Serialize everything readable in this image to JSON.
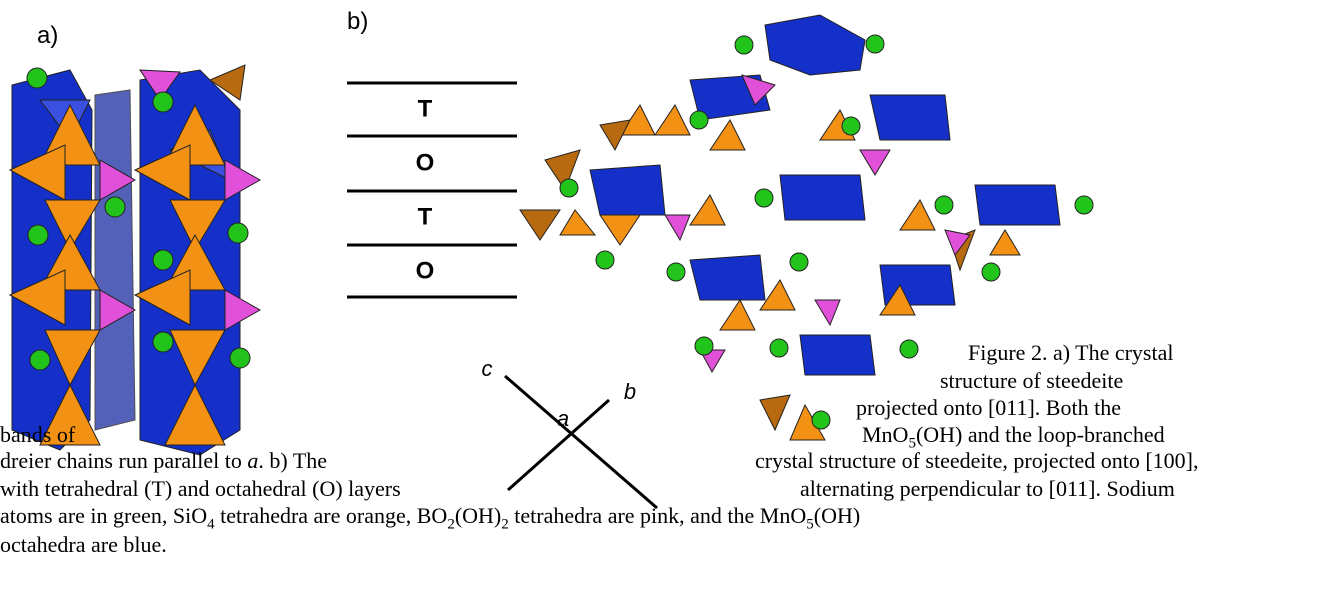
{
  "panel_a": {
    "label": "a)"
  },
  "panel_b": {
    "label": "b)",
    "layers": [
      "T",
      "O",
      "T",
      "O"
    ],
    "axes": {
      "c": "c",
      "b": "b",
      "a": "a"
    }
  },
  "caption": {
    "lines": [
      [
        "Figure 2. a) The crystal"
      ],
      [
        "structure of steedeite"
      ],
      [
        "projected onto [011].  Both the"
      ],
      [
        "bands of",
        "MnO",
        "5",
        "(OH) and the loop-branched"
      ],
      [
        "dreier chains run parallel to ",
        "a",
        ". b) The",
        "crystal structure of steedeite, projected onto [100],"
      ],
      [
        "with tetrahedral (T) and octahedral (O) layers",
        "alternating perpendicular to [011].  Sodium"
      ],
      [
        "atoms are in green, SiO",
        "4",
        " tetrahedra are orange, BO",
        "2",
        "(OH)",
        "2",
        " tetrahedra are pink, and the MnO",
        "5",
        "(OH)"
      ],
      [
        "octahedra are blue."
      ]
    ]
  }
}
